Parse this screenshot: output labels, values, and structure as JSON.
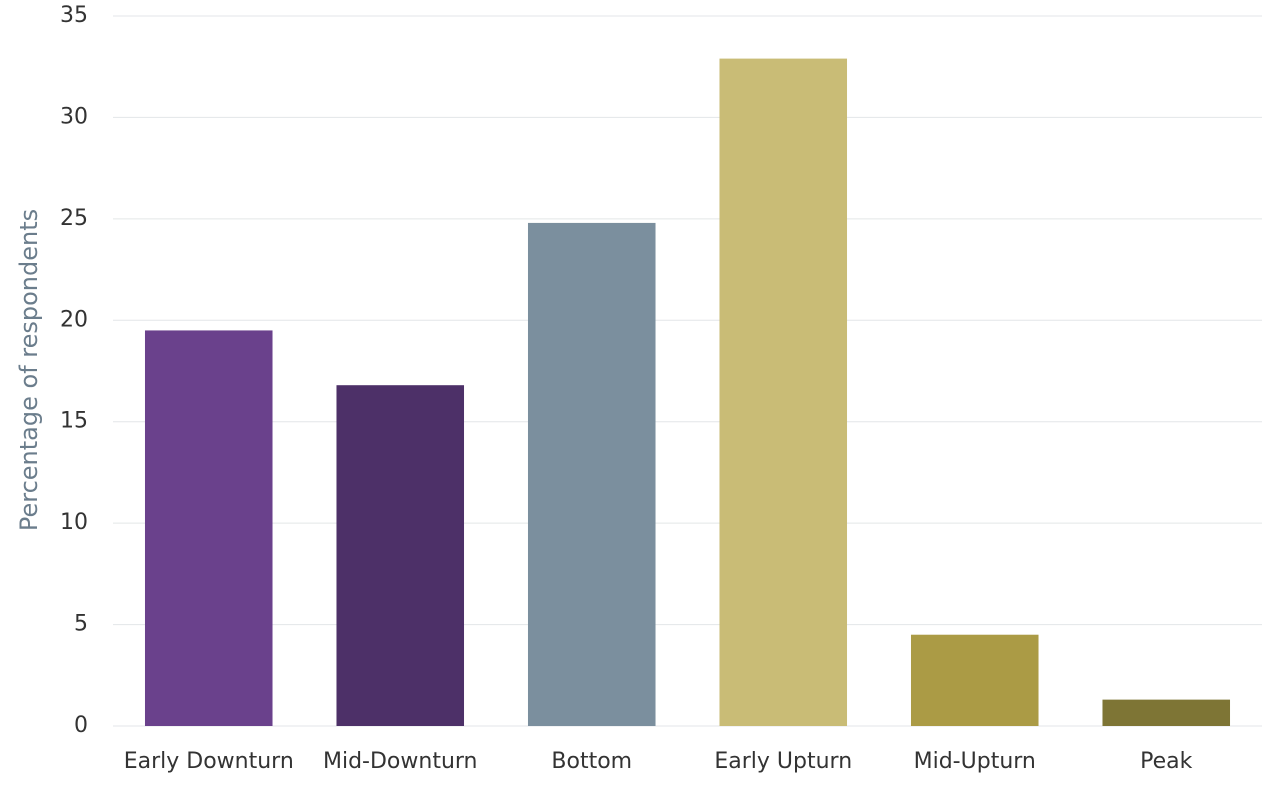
{
  "chart_data": {
    "type": "bar",
    "y_label": "Percentage of respondents",
    "categories": [
      "Early Downturn",
      "Mid-Downturn",
      "Bottom",
      "Early Upturn",
      "Mid-Upturn",
      "Peak"
    ],
    "values": [
      19.5,
      16.8,
      24.8,
      32.9,
      4.5,
      1.3
    ],
    "colors": [
      "#6a418c",
      "#4d3068",
      "#7b8f9e",
      "#c9bc76",
      "#ab9b45",
      "#7e7535"
    ],
    "ylim": [
      0,
      35
    ],
    "yticks": [
      0,
      5,
      10,
      15,
      20,
      25,
      30,
      35
    ],
    "grid": true
  }
}
